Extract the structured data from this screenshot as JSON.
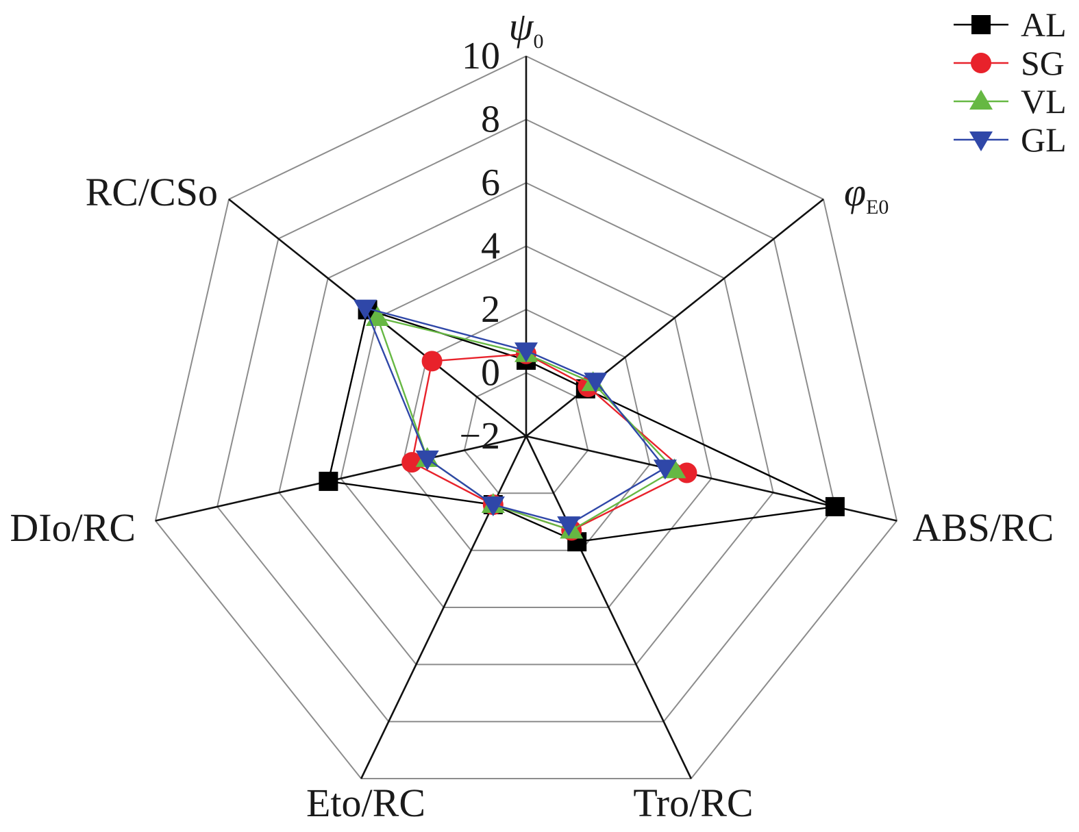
{
  "chart_data": {
    "type": "radar",
    "axes": [
      {
        "main": "ψ",
        "sub": "0",
        "italic": true
      },
      {
        "main": "φ",
        "sub": "E0",
        "italic": true
      },
      {
        "main": "ABS/RC",
        "sub": "",
        "italic": false
      },
      {
        "main": "Tro/RC",
        "sub": "",
        "italic": false
      },
      {
        "main": "Eto/RC",
        "sub": "",
        "italic": false
      },
      {
        "main": "DIo/RC",
        "sub": "",
        "italic": false
      },
      {
        "main": "RC/CSo",
        "sub": "",
        "italic": false
      }
    ],
    "r_range": [
      -2,
      10
    ],
    "ticks": [
      -2,
      0,
      2,
      4,
      6,
      8,
      10
    ],
    "tick_labels": [
      "−2",
      "0",
      "2",
      "4",
      "6",
      "8",
      "10"
    ],
    "grid": true,
    "legend_position": "top-right",
    "series": [
      {
        "name": "AL",
        "color": "#000000",
        "marker": "square",
        "values": [
          0.4,
          0.4,
          8.0,
          1.7,
          0.4,
          4.4,
          4.4
        ]
      },
      {
        "name": "SG",
        "color": "#e8222b",
        "marker": "circle",
        "values": [
          0.6,
          0.5,
          3.2,
          1.3,
          0.4,
          1.7,
          1.8
        ]
      },
      {
        "name": "VL",
        "color": "#66b843",
        "marker": "triangle-up",
        "values": [
          0.6,
          0.7,
          2.8,
          1.3,
          0.4,
          1.2,
          4.0
        ]
      },
      {
        "name": "GL",
        "color": "#2f47a8",
        "marker": "triangle-down",
        "values": [
          0.7,
          0.8,
          2.5,
          1.1,
          0.4,
          1.2,
          4.5
        ]
      }
    ]
  }
}
